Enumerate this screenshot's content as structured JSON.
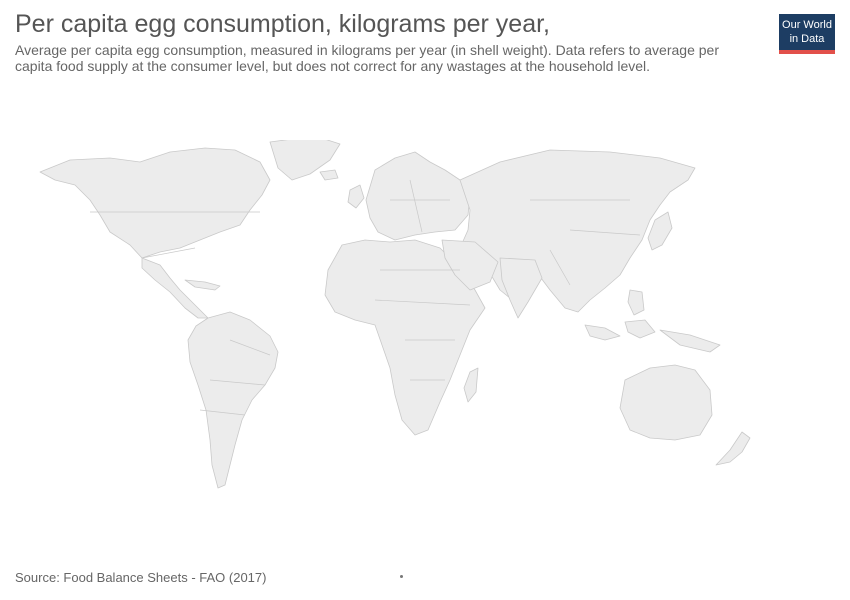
{
  "header": {
    "title": "Per capita egg consumption, kilograms per year,",
    "subtitle": "Average per capita egg consumption, measured in kilograms per year (in shell weight). Data refers to average per capita food supply at the consumer level, but does not correct for any wastages at the household level."
  },
  "logo": {
    "line1": "Our World",
    "line2": "in Data",
    "background": "#1d3d63",
    "accent": "#e2504a"
  },
  "map": {
    "land_color": "#ececec",
    "border_color": "#c9c9c9"
  },
  "footer": {
    "source": "Source: Food Balance Sheets - FAO (2017)"
  }
}
